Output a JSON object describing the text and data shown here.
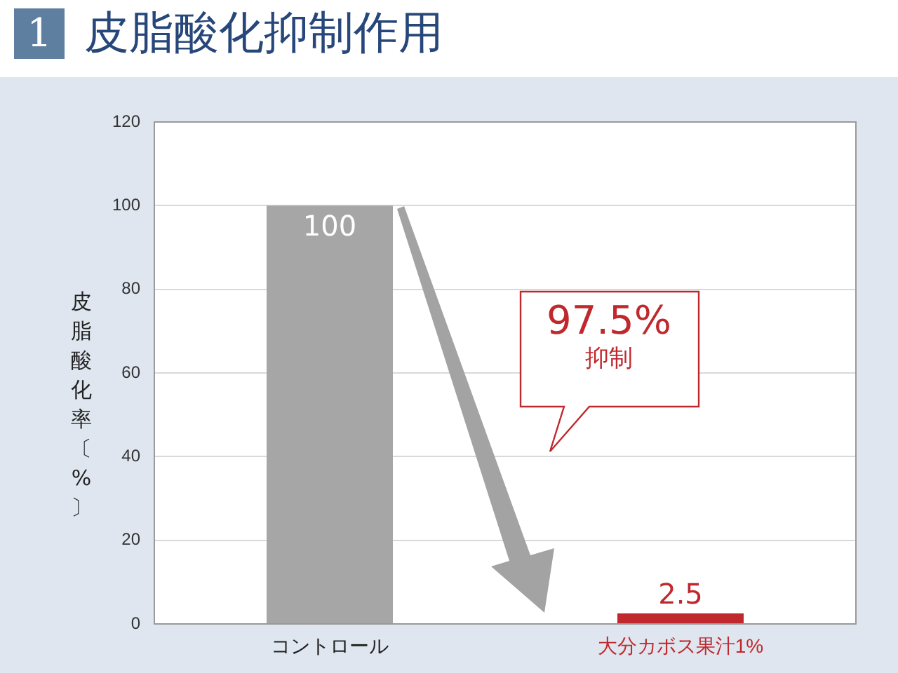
{
  "chart_data": {
    "type": "bar",
    "title": "1 皮脂酸化抑制作用",
    "ylabel": "皮脂酸化率〔%〕",
    "categories": [
      "コントロール",
      "大分カボス果汁1%"
    ],
    "values": [
      100,
      2.5
    ],
    "colors": [
      "#a6a6a6",
      "#c0282d"
    ],
    "ylim": [
      0,
      120
    ],
    "yticks": [
      0,
      20,
      40,
      60,
      80,
      100,
      120
    ],
    "grid": "y",
    "legend": false,
    "data_labels": true,
    "annotations": [
      "97.5%\n抑制"
    ]
  }
}
